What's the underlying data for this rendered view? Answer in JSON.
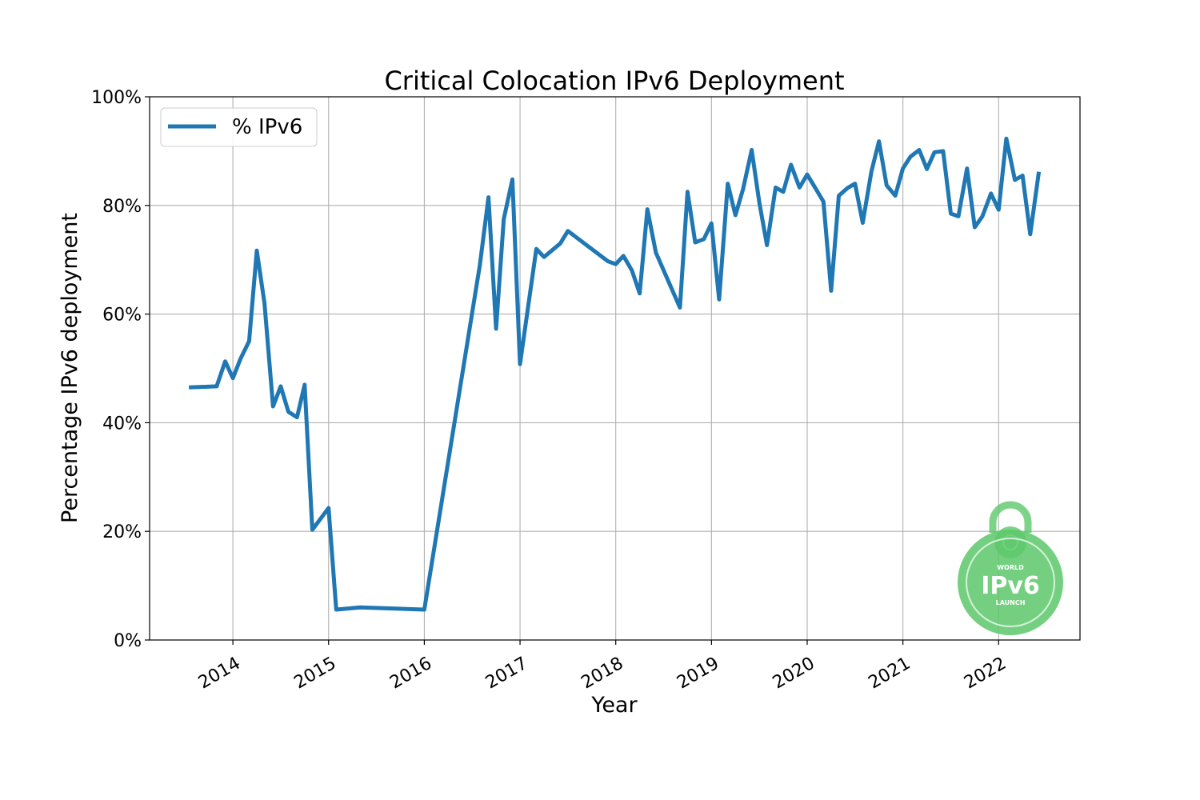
{
  "chart_data": {
    "type": "line",
    "title": "Critical Colocation IPv6 Deployment",
    "xlabel": "Year",
    "ylabel": "Percentage IPv6 deployment",
    "xlim": [
      2013.13,
      2022.85
    ],
    "ylim": [
      0,
      100
    ],
    "x_ticks": [
      2014,
      2015,
      2016,
      2017,
      2018,
      2019,
      2020,
      2021,
      2022
    ],
    "x_tick_labels": [
      "2014",
      "2015",
      "2016",
      "2017",
      "2018",
      "2019",
      "2020",
      "2021",
      "2022"
    ],
    "y_ticks": [
      0,
      20,
      40,
      60,
      80,
      100
    ],
    "y_tick_labels": [
      "0%",
      "20%",
      "40%",
      "60%",
      "80%",
      "100%"
    ],
    "grid": true,
    "legend_position": "top-left",
    "badge": {
      "top_text": "WORLD",
      "main_text": "IPv6",
      "bottom_text": "LAUNCH",
      "color": "#5cc86a"
    },
    "series": [
      {
        "name": "% IPv6",
        "color": "#1f77b4",
        "x": [
          2013.54,
          2013.83,
          2013.92,
          2014.0,
          2014.08,
          2014.17,
          2014.25,
          2014.33,
          2014.42,
          2014.5,
          2014.58,
          2014.67,
          2014.75,
          2014.83,
          2015.0,
          2015.08,
          2015.33,
          2016.0,
          2016.58,
          2016.67,
          2016.75,
          2016.83,
          2016.92,
          2017.0,
          2017.17,
          2017.25,
          2017.42,
          2017.5,
          2017.92,
          2018.0,
          2018.08,
          2018.17,
          2018.25,
          2018.33,
          2018.42,
          2018.67,
          2018.75,
          2018.83,
          2018.92,
          2019.0,
          2019.08,
          2019.17,
          2019.25,
          2019.33,
          2019.42,
          2019.5,
          2019.58,
          2019.67,
          2019.75,
          2019.83,
          2019.92,
          2020.0,
          2020.17,
          2020.25,
          2020.33,
          2020.42,
          2020.5,
          2020.58,
          2020.67,
          2020.75,
          2020.83,
          2020.92,
          2021.0,
          2021.08,
          2021.17,
          2021.25,
          2021.33,
          2021.42,
          2021.5,
          2021.58,
          2021.67,
          2021.75,
          2021.83,
          2021.92,
          2022.0,
          2022.08,
          2022.17,
          2022.25,
          2022.33,
          2022.42
        ],
        "values": [
          46.5,
          46.7,
          51.3,
          48.2,
          51.8,
          55.0,
          71.7,
          62.0,
          43.0,
          46.7,
          42.0,
          41.0,
          47.0,
          20.3,
          24.3,
          5.6,
          6.0,
          5.6,
          69.0,
          81.5,
          57.3,
          77.5,
          84.8,
          50.8,
          72.0,
          70.5,
          73.0,
          75.3,
          69.7,
          69.2,
          70.7,
          68.0,
          63.8,
          79.3,
          71.3,
          61.2,
          82.5,
          73.2,
          73.8,
          76.7,
          62.7,
          84.0,
          78.2,
          83.0,
          90.2,
          80.5,
          72.7,
          83.3,
          82.5,
          87.5,
          83.3,
          85.7,
          80.7,
          64.3,
          81.8,
          83.2,
          84.0,
          76.8,
          86.2,
          91.8,
          83.7,
          81.8,
          86.8,
          89.0,
          90.2,
          86.7,
          89.8,
          90.0,
          78.5,
          78.0,
          86.8,
          76.0,
          78.0,
          82.2,
          79.2,
          92.3,
          84.7,
          85.5,
          74.7,
          86.2
        ]
      }
    ]
  }
}
